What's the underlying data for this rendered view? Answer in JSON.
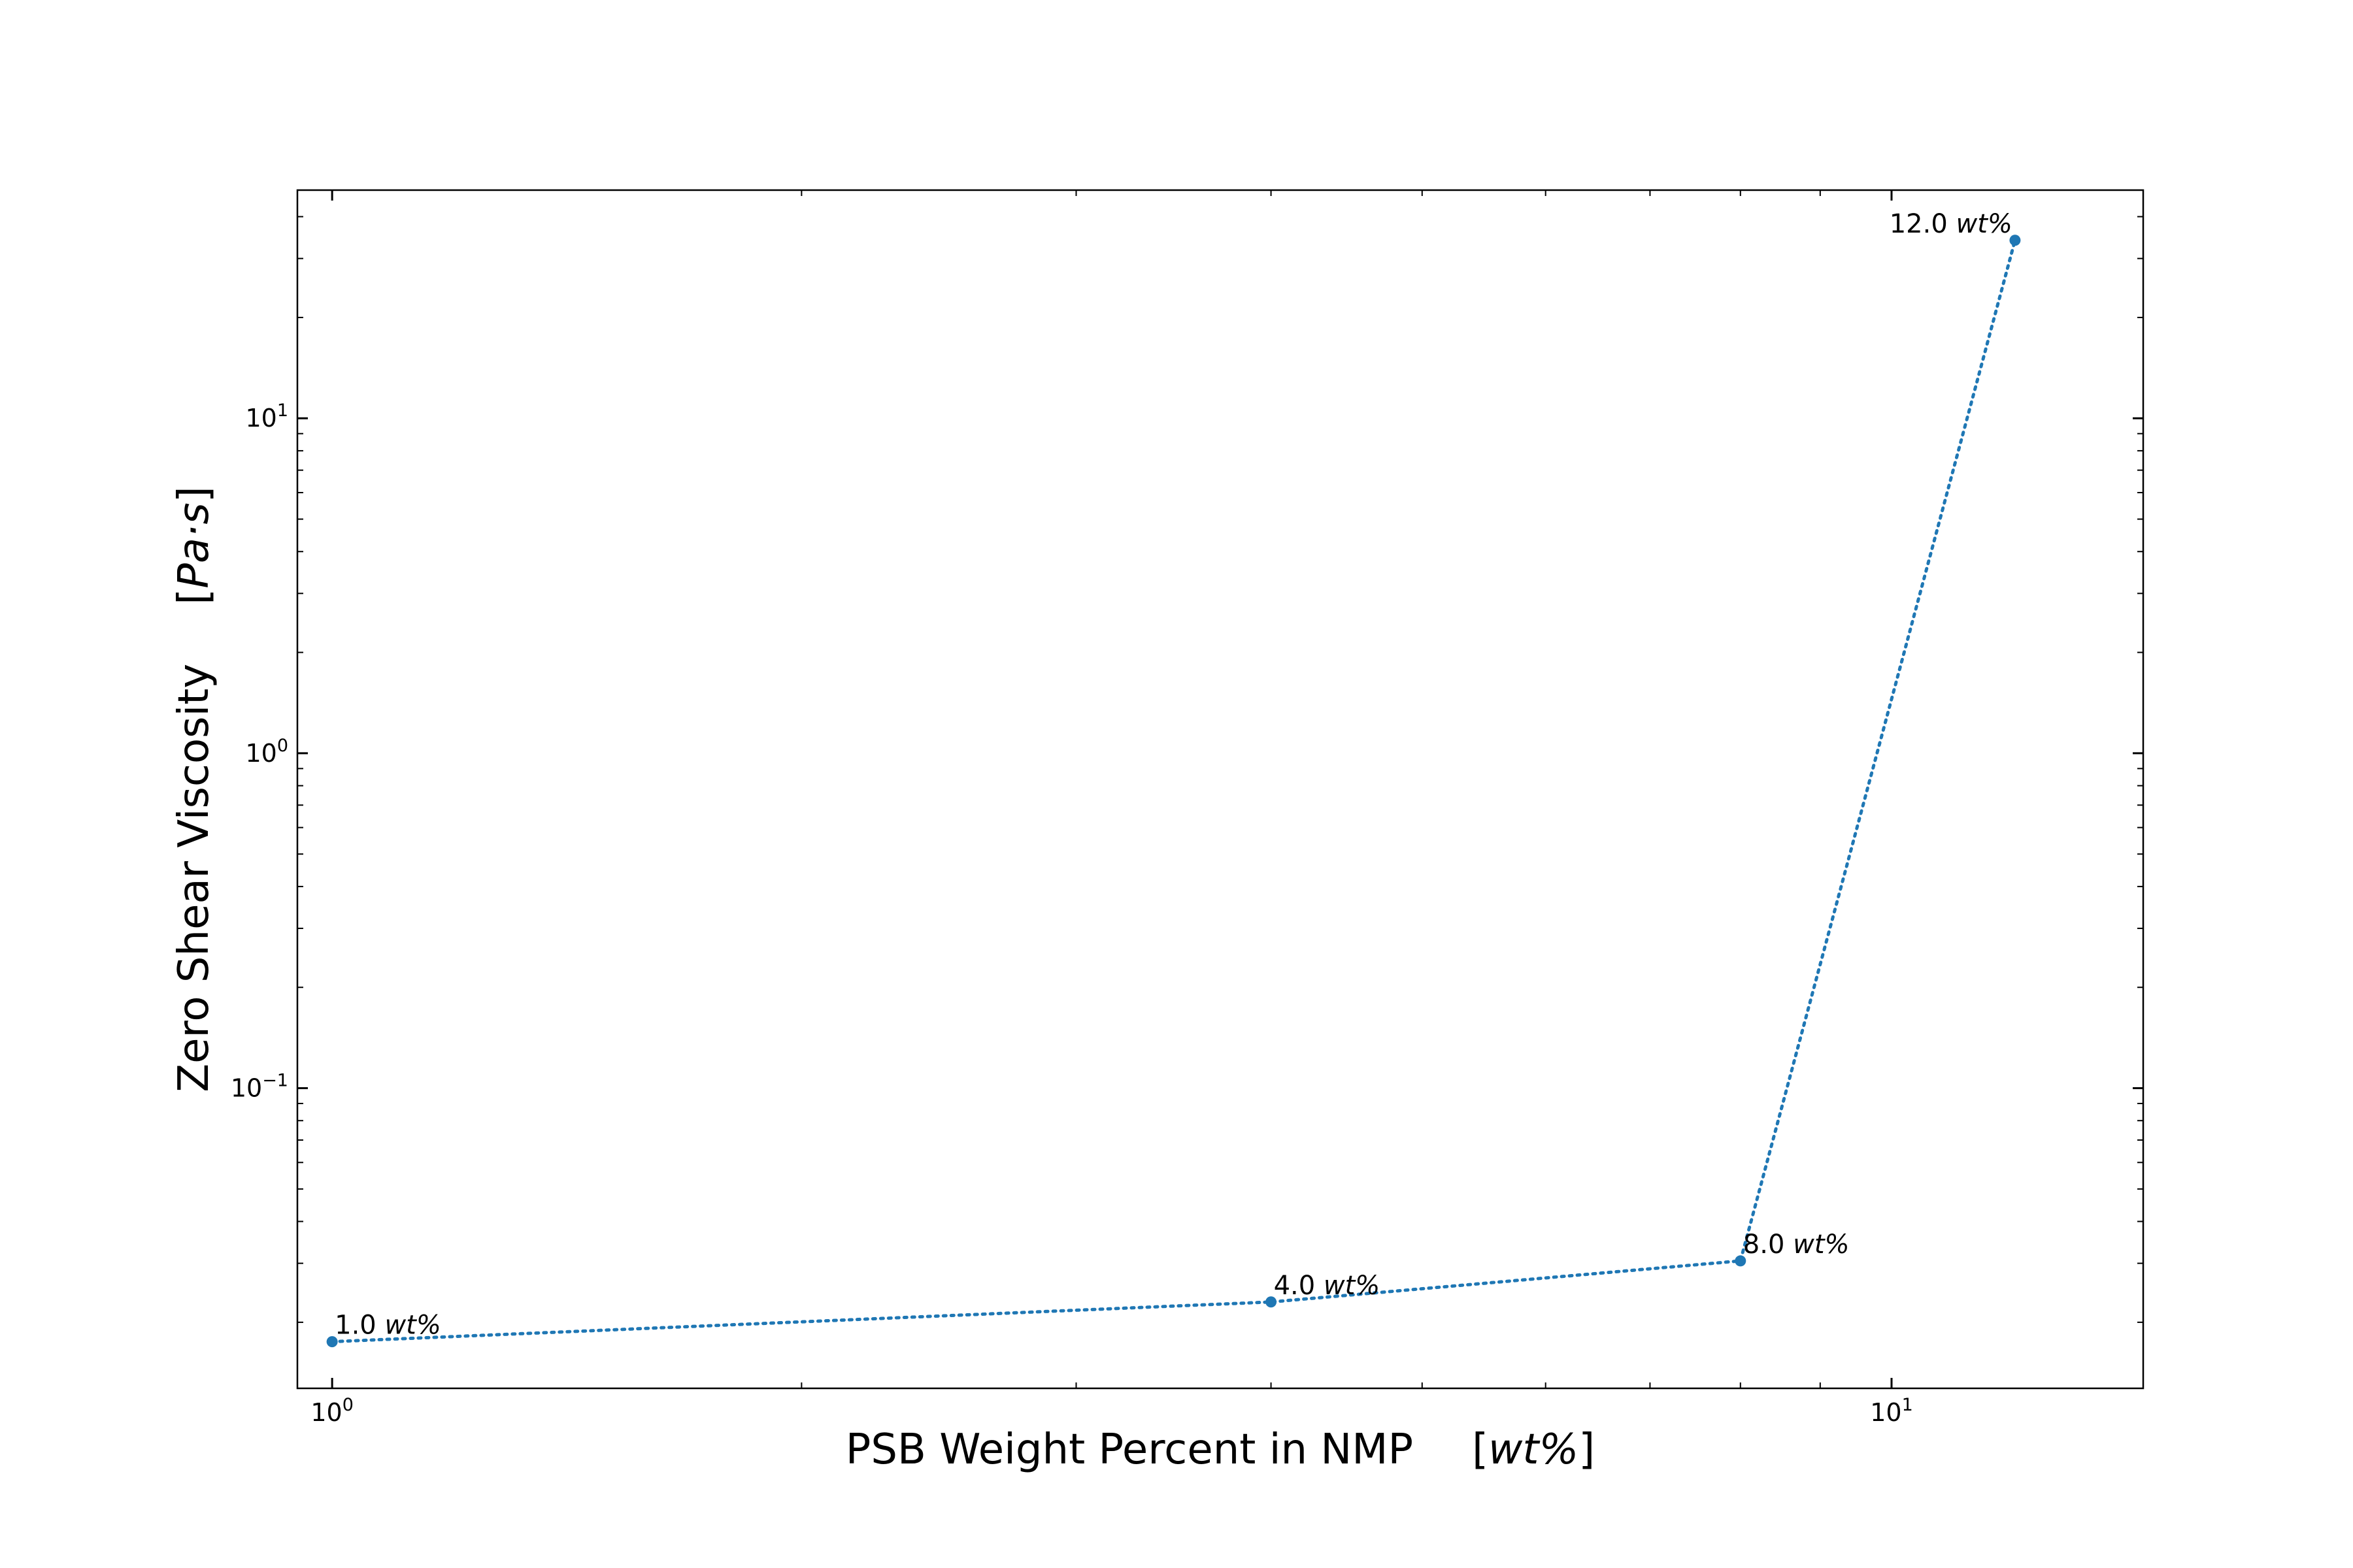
{
  "chart_data": {
    "type": "line",
    "xlabel": "PSB Weight Percent in NMP",
    "xunit": "wt%",
    "ylabel": "Zero Shear Viscosity",
    "yunit": "Pa·s",
    "xscale": "log",
    "yscale": "log",
    "xlim": [
      0.95,
      14.5
    ],
    "ylim": [
      0.0127,
      48
    ],
    "x_ticks": [
      {
        "base": "10",
        "exp": "0",
        "value": 1
      },
      {
        "base": "10",
        "exp": "1",
        "value": 10
      }
    ],
    "y_ticks": [
      {
        "base": "10",
        "exp": "−1",
        "value": 0.1
      },
      {
        "base": "10",
        "exp": "0",
        "value": 1
      },
      {
        "base": "10",
        "exp": "1",
        "value": 10
      }
    ],
    "grid": false,
    "line_style": "dotted",
    "color": "#1f77b4",
    "series": [
      {
        "x": [
          1.0,
          4.0,
          8.0,
          12.0
        ],
        "y": [
          0.0175,
          0.023,
          0.0305,
          34.0
        ],
        "labels": [
          {
            "num": "1.0",
            "unit": "wt%"
          },
          {
            "num": "4.0",
            "unit": "wt%"
          },
          {
            "num": "8.0",
            "unit": "wt%"
          },
          {
            "num": "12.0",
            "unit": "wt%"
          }
        ]
      }
    ]
  }
}
